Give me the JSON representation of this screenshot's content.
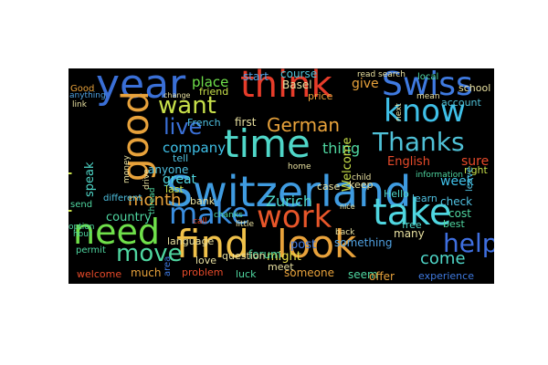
{
  "words": [
    {
      "text": "Switzerland",
      "color": "#3f9be0"
    },
    {
      "text": "find",
      "color": "#f0c14a"
    },
    {
      "text": "look",
      "color": "#e8a23b"
    },
    {
      "text": "year",
      "color": "#3a6fd6"
    },
    {
      "text": "think",
      "color": "#e63c2a"
    },
    {
      "text": "Swiss",
      "color": "#3f7ae0"
    },
    {
      "text": "time",
      "color": "#4fd6c8"
    },
    {
      "text": "good",
      "color": "#e8a23b"
    },
    {
      "text": "know",
      "color": "#3fc0e8"
    },
    {
      "text": "take",
      "color": "#4fd6e0"
    },
    {
      "text": "work",
      "color": "#e8562a"
    },
    {
      "text": "need",
      "color": "#6fe04a"
    },
    {
      "text": "make",
      "color": "#3a8ee0"
    },
    {
      "text": "Thanks",
      "color": "#4fc0d6"
    },
    {
      "text": "help",
      "color": "#3f6fe0"
    },
    {
      "text": "people",
      "color": "#c8e04a"
    },
    {
      "text": "move",
      "color": "#4fd6a0"
    },
    {
      "text": "want",
      "color": "#c8e04a"
    },
    {
      "text": "live",
      "color": "#3a6fd6"
    },
    {
      "text": "German",
      "color": "#e8a23b"
    },
    {
      "text": "month",
      "color": "#e8a23b"
    },
    {
      "text": "come",
      "color": "#4fd6c8"
    },
    {
      "text": "Zurich",
      "color": "#4fd6c8"
    },
    {
      "text": "thing",
      "color": "#4fd6a0"
    },
    {
      "text": "company",
      "color": "#3fc0e8"
    },
    {
      "text": "place",
      "color": "#6fe04a"
    },
    {
      "text": "start",
      "color": "#4fa0e0"
    },
    {
      "text": "give",
      "color": "#e8a23b"
    },
    {
      "text": "Welcome",
      "color": "#c8e04a"
    },
    {
      "text": "English",
      "color": "#e84a2a"
    },
    {
      "text": "course",
      "color": "#4fc0d6"
    },
    {
      "text": "speak",
      "color": "#4fd6c8"
    },
    {
      "text": "great",
      "color": "#4fd6e0"
    },
    {
      "text": "country",
      "color": "#4fd6a0"
    },
    {
      "text": "week",
      "color": "#3fc0e8"
    },
    {
      "text": "post",
      "color": "#3f7ae0"
    },
    {
      "text": "might",
      "color": "#e8e04a"
    },
    {
      "text": "anyone",
      "color": "#4fc0e0"
    },
    {
      "text": "much",
      "color": "#e8a23b"
    },
    {
      "text": "language",
      "color": "#e8e0a0"
    },
    {
      "text": "forum",
      "color": "#4fd6a0"
    },
    {
      "text": "sure",
      "color": "#e84a2a"
    },
    {
      "text": "right",
      "color": "#c8e04a"
    },
    {
      "text": "check",
      "color": "#4fc0e0"
    },
    {
      "text": "cost",
      "color": "#4fd6a0"
    },
    {
      "text": "best",
      "color": "#4fd6a0"
    },
    {
      "text": "many",
      "color": "#e8e0a0"
    },
    {
      "text": "free",
      "color": "#4fd6c8"
    },
    {
      "text": "something",
      "color": "#4fa0e0"
    },
    {
      "text": "someone",
      "color": "#e8a23b"
    },
    {
      "text": "experience",
      "color": "#3f7ae0"
    },
    {
      "text": "seem",
      "color": "#4fd6a0"
    },
    {
      "text": "offer",
      "color": "#e8a23b"
    },
    {
      "text": "first",
      "color": "#e8e0a0"
    },
    {
      "text": "friend",
      "color": "#c8e04a"
    },
    {
      "text": "price",
      "color": "#e8a23b"
    },
    {
      "text": "Basel",
      "color": "#e8e0a0"
    },
    {
      "text": "account",
      "color": "#4fc0d6"
    },
    {
      "text": "school",
      "color": "#e8e0a0"
    },
    {
      "text": "local",
      "color": "#4fd6a0"
    },
    {
      "text": "French",
      "color": "#4fc0e0"
    },
    {
      "text": "bank",
      "color": "#e8e0a0"
    },
    {
      "text": "tell",
      "color": "#4fc0e0"
    },
    {
      "text": "last",
      "color": "#c8e04a"
    },
    {
      "text": "welcome",
      "color": "#e84a2a"
    },
    {
      "text": "problem",
      "color": "#e84a2a"
    },
    {
      "text": "question",
      "color": "#e8e0a0"
    },
    {
      "text": "love",
      "color": "#e8e0a0"
    },
    {
      "text": "luck",
      "color": "#4fd6a0"
    },
    {
      "text": "meet",
      "color": "#e8e0a0"
    },
    {
      "text": "area",
      "color": "#3f7ae0"
    },
    {
      "text": "different",
      "color": "#4fc0e0"
    },
    {
      "text": "permit",
      "color": "#4fd6a0"
    },
    {
      "text": "send",
      "color": "#4fd6a0"
    },
    {
      "text": "hour",
      "color": "#4fd6a0"
    },
    {
      "text": "Good",
      "color": "#e8a23b"
    },
    {
      "text": "anything",
      "color": "#4fa0e0"
    },
    {
      "text": "learn",
      "color": "#4fc0e0"
    },
    {
      "text": "Hello",
      "color": "#4fd6c8"
    },
    {
      "text": "keep",
      "color": "#e8e0a0"
    },
    {
      "text": "case",
      "color": "#e8e0a0"
    },
    {
      "text": "child",
      "color": "#e8e0a0"
    },
    {
      "text": "home",
      "color": "#e8e0a0"
    },
    {
      "text": "call",
      "color": "#e84a2a"
    },
    {
      "text": "little",
      "color": "#e8e0a0"
    },
    {
      "text": "chanks",
      "color": "#4fd6a0"
    },
    {
      "text": "drive",
      "color": "#e8e0a0"
    },
    {
      "text": "thread",
      "color": "#4fd6a0"
    },
    {
      "text": "money",
      "color": "#e8e0a0"
    },
    {
      "text": "leave",
      "color": "#4fc0e0"
    },
    {
      "text": "information",
      "color": "#4fd6a0"
    },
    {
      "text": "mean",
      "color": "#e8e0a0"
    },
    {
      "text": "option",
      "color": "#4fd6a0"
    },
    {
      "text": "link",
      "color": "#e8e0a0"
    },
    {
      "text": "next",
      "color": "#e8e0a0"
    },
    {
      "text": "read",
      "color": "#e8e0a0"
    },
    {
      "text": "search",
      "color": "#e8e0a0"
    },
    {
      "text": "change",
      "color": "#e8e0a0"
    },
    {
      "text": "nice",
      "color": "#e8e0a0"
    },
    {
      "text": "back",
      "color": "#e8e0a0"
    }
  ]
}
